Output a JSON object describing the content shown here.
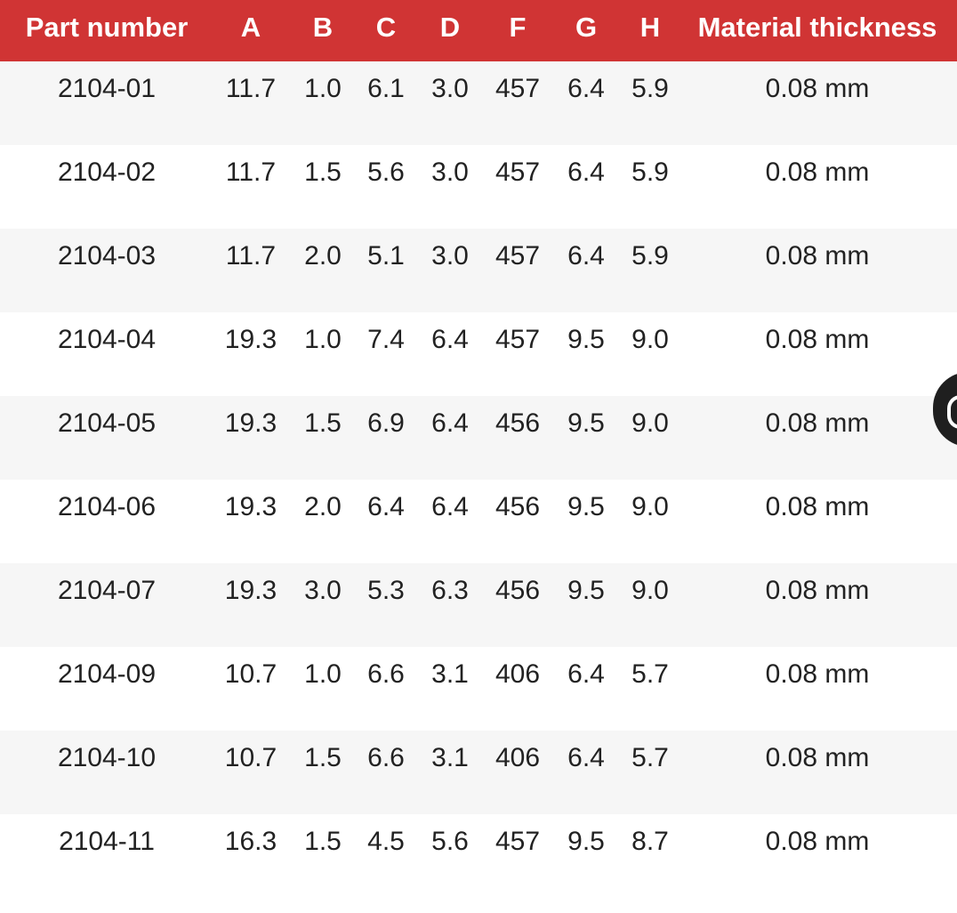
{
  "table": {
    "header_color": "#d03434",
    "columns": [
      "Part number",
      "A",
      "B",
      "C",
      "D",
      "F",
      "G",
      "H",
      "Material thickness"
    ],
    "rows": [
      [
        "2104-01",
        "11.7",
        "1.0",
        "6.1",
        "3.0",
        "457",
        "6.4",
        "5.9",
        "0.08 mm"
      ],
      [
        "2104-02",
        "11.7",
        "1.5",
        "5.6",
        "3.0",
        "457",
        "6.4",
        "5.9",
        "0.08 mm"
      ],
      [
        "2104-03",
        "11.7",
        "2.0",
        "5.1",
        "3.0",
        "457",
        "6.4",
        "5.9",
        "0.08 mm"
      ],
      [
        "2104-04",
        "19.3",
        "1.0",
        "7.4",
        "6.4",
        "457",
        "9.5",
        "9.0",
        "0.08 mm"
      ],
      [
        "2104-05",
        "19.3",
        "1.5",
        "6.9",
        "6.4",
        "456",
        "9.5",
        "9.0",
        "0.08 mm"
      ],
      [
        "2104-06",
        "19.3",
        "2.0",
        "6.4",
        "6.4",
        "456",
        "9.5",
        "9.0",
        "0.08 mm"
      ],
      [
        "2104-07",
        "19.3",
        "3.0",
        "5.3",
        "6.3",
        "456",
        "9.5",
        "9.0",
        "0.08 mm"
      ],
      [
        "2104-09",
        "10.7",
        "1.0",
        "6.6",
        "3.1",
        "406",
        "6.4",
        "5.7",
        "0.08 mm"
      ],
      [
        "2104-10",
        "10.7",
        "1.5",
        "6.6",
        "3.1",
        "406",
        "6.4",
        "5.7",
        "0.08 mm"
      ],
      [
        "2104-11",
        "16.3",
        "1.5",
        "4.5",
        "5.6",
        "457",
        "9.5",
        "8.7",
        "0.08 mm"
      ]
    ]
  },
  "floating_widget": {
    "icon": "chat-bubble-icon"
  }
}
